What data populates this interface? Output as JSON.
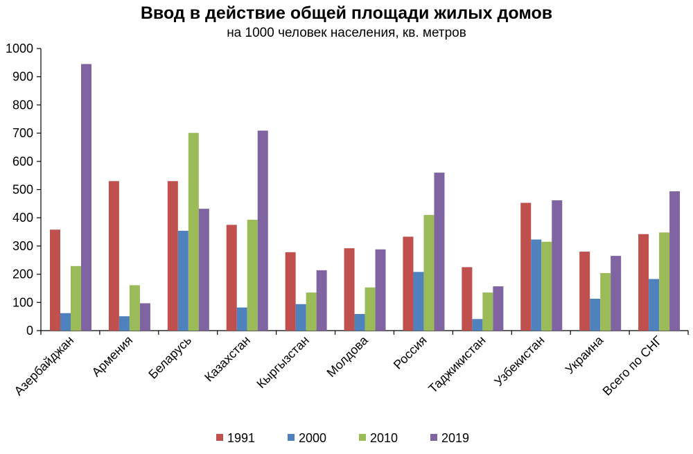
{
  "chart_data": {
    "type": "bar",
    "title": "Ввод в действие общей площади жилых домов",
    "subtitle": "на 1000 человек населения, кв. метров",
    "categories": [
      "Азербайджан",
      "Армения",
      "Беларусь",
      "Казахстан",
      "Кыргызстан",
      "Молдова",
      "Россия",
      "Таджикистан",
      "Узбекистан",
      "Украина",
      "Всего по СНГ"
    ],
    "series": [
      {
        "name": "1991",
        "color": "#c0504d",
        "values": [
          358,
          530,
          530,
          375,
          278,
          292,
          333,
          225,
          453,
          280,
          342
        ]
      },
      {
        "name": "2000",
        "color": "#4f81bd",
        "values": [
          62,
          51,
          354,
          82,
          94,
          59,
          208,
          41,
          323,
          113,
          183
        ]
      },
      {
        "name": "2010",
        "color": "#9bbb59",
        "values": [
          229,
          161,
          701,
          393,
          135,
          153,
          410,
          135,
          315,
          204,
          348
        ]
      },
      {
        "name": "2019",
        "color": "#8064a2",
        "values": [
          945,
          97,
          432,
          709,
          214,
          288,
          560,
          157,
          462,
          265,
          494
        ]
      }
    ],
    "yticks": [
      "0",
      "100",
      "200",
      "300",
      "400",
      "500",
      "600",
      "700",
      "800",
      "900",
      "1000"
    ],
    "ylim": [
      0,
      1000
    ],
    "grid": false,
    "legend_position": "bottom"
  }
}
